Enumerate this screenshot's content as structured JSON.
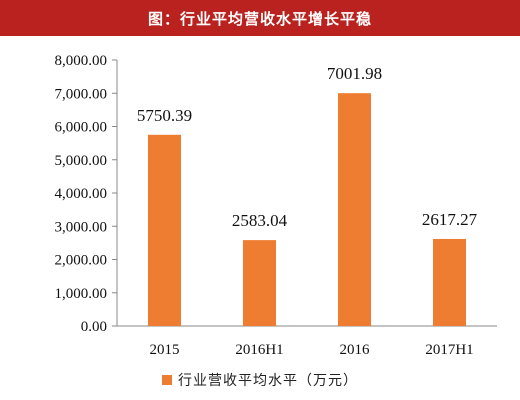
{
  "header": {
    "title": "图：行业平均营收水平增长平稳"
  },
  "colors": {
    "title_background": "#b9221e",
    "bar": "#ee7d31",
    "axis": "#888888"
  },
  "chart_data": {
    "type": "bar",
    "title": "图：行业平均营收水平增长平稳",
    "categories": [
      "2015",
      "2016H1",
      "2016",
      "2017H1"
    ],
    "series": [
      {
        "name": "行业营收平均水平（万元）",
        "values": [
          5750.39,
          2583.04,
          7001.98,
          2617.27
        ]
      }
    ],
    "value_labels": [
      "5750.39",
      "2583.04",
      "7001.98",
      "2617.27"
    ],
    "y_ticks": [
      "0.00",
      "1,000.00",
      "2,000.00",
      "3,000.00",
      "4,000.00",
      "5,000.00",
      "6,000.00",
      "7,000.00",
      "8,000.00"
    ],
    "ylim": [
      0,
      8000
    ],
    "grid": false,
    "legend_position": "bottom",
    "xlabel": "",
    "ylabel": ""
  }
}
